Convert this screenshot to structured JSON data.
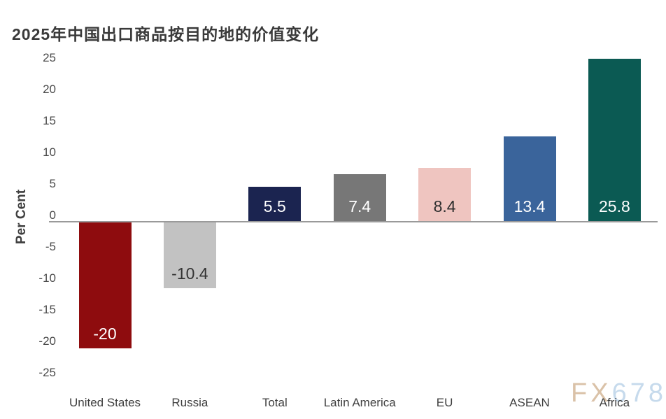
{
  "title": "2025年中国出口商品按目的地的价值变化",
  "y_axis": {
    "label": "Per Cent",
    "ticks": [
      25,
      20,
      15,
      10,
      5,
      0,
      -5,
      -10,
      -15,
      -20,
      -25
    ]
  },
  "chart_data": {
    "type": "bar",
    "title": "2025年中国出口商品按目的地的价值变化",
    "xlabel": "",
    "ylabel": "Per Cent",
    "ylim": [
      -25,
      25
    ],
    "grid": false,
    "legend_position": "none",
    "categories": [
      "United States",
      "Russia",
      "Total",
      "Latin America",
      "EU",
      "ASEAN",
      "Africa"
    ],
    "values": [
      -20,
      -10.4,
      5.5,
      7.4,
      8.4,
      13.4,
      25.8
    ],
    "value_labels": [
      "-20",
      "-10.4",
      "5.5",
      "7.4",
      "8.4",
      "13.4",
      "25.8"
    ],
    "bar_colors": [
      "#8e0c0e",
      "#c2c2c2",
      "#1b2450",
      "#777777",
      "#efc5c0",
      "#3a649b",
      "#0b5a53"
    ],
    "value_label_colors": [
      "#ffffff",
      "#333333",
      "#ffffff",
      "#ffffff",
      "#2f2f2f",
      "#ffffff",
      "#ffffff"
    ],
    "axis_line_color": "#9a9a9a"
  },
  "watermark": {
    "part1": "FX",
    "part2": "678",
    "color1": "#d9bfa4",
    "color2": "#c3d9ec"
  }
}
